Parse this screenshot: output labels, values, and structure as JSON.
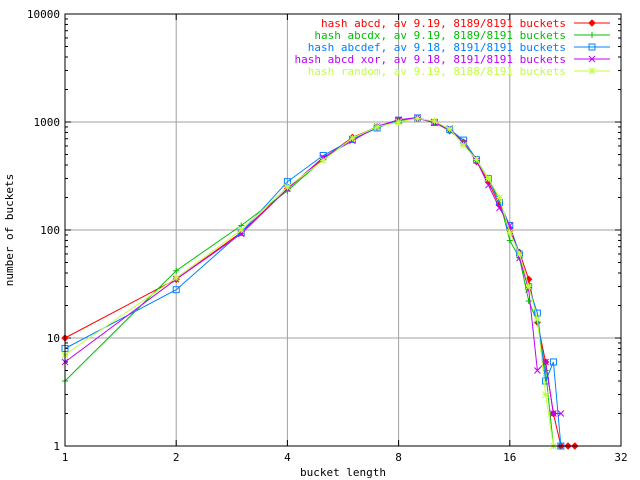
{
  "chart_data": {
    "type": "line",
    "xlabel": "bucket length",
    "ylabel": "number of buckets",
    "x_scale": "log2",
    "y_scale": "log10",
    "xlim": [
      1,
      32
    ],
    "ylim": [
      1,
      10000
    ],
    "x_ticks": [
      "1",
      "2",
      "4",
      "8",
      "16",
      "32"
    ],
    "y_ticks": [
      "1",
      "10",
      "100",
      "1000",
      "10000"
    ],
    "grid": true,
    "legend_position": "top-right",
    "series": [
      {
        "name": "hash abcd, av 9.19, 8189/8191 buckets",
        "color": "#ff0000",
        "marker": "diamond",
        "points": [
          [
            1,
            10
          ],
          [
            2,
            35
          ],
          [
            3,
            95
          ],
          [
            4,
            240
          ],
          [
            5,
            460
          ],
          [
            6,
            720
          ],
          [
            7,
            900
          ],
          [
            8,
            1040
          ],
          [
            9,
            1080
          ],
          [
            10,
            990
          ],
          [
            11,
            830
          ],
          [
            12,
            650
          ],
          [
            13,
            430
          ],
          [
            14,
            280
          ],
          [
            15,
            170
          ],
          [
            16,
            100
          ],
          [
            17,
            62
          ],
          [
            18,
            35
          ],
          [
            19,
            14
          ],
          [
            20,
            6
          ],
          [
            21,
            2
          ],
          [
            22,
            1
          ],
          [
            23,
            1
          ],
          [
            24,
            1
          ]
        ]
      },
      {
        "name": "hash abcdx, av 9.19, 8189/8191 buckets",
        "color": "#00c000",
        "marker": "plus",
        "points": [
          [
            1,
            4
          ],
          [
            2,
            42
          ],
          [
            3,
            110
          ],
          [
            4,
            230
          ],
          [
            5,
            450
          ],
          [
            6,
            700
          ],
          [
            7,
            910
          ],
          [
            8,
            1030
          ],
          [
            9,
            1090
          ],
          [
            10,
            1000
          ],
          [
            11,
            850
          ],
          [
            12,
            650
          ],
          [
            13,
            440
          ],
          [
            14,
            300
          ],
          [
            15,
            190
          ],
          [
            16,
            80
          ],
          [
            17,
            55
          ],
          [
            18,
            22
          ],
          [
            19,
            14
          ],
          [
            20,
            5
          ],
          [
            21,
            1
          ]
        ]
      },
      {
        "name": "hash abcdef, av 9.18, 8191/8191 buckets",
        "color": "#0080ff",
        "marker": "square",
        "points": [
          [
            1,
            8
          ],
          [
            2,
            28
          ],
          [
            3,
            95
          ],
          [
            4,
            280
          ],
          [
            5,
            490
          ],
          [
            6,
            690
          ],
          [
            7,
            880
          ],
          [
            8,
            1040
          ],
          [
            9,
            1090
          ],
          [
            10,
            990
          ],
          [
            11,
            850
          ],
          [
            12,
            680
          ],
          [
            13,
            450
          ],
          [
            14,
            300
          ],
          [
            15,
            180
          ],
          [
            16,
            110
          ],
          [
            17,
            60
          ],
          [
            18,
            30
          ],
          [
            19,
            17
          ],
          [
            20,
            4
          ],
          [
            21,
            6
          ],
          [
            22,
            1
          ]
        ]
      },
      {
        "name": "hash abcd xor, av 9.18, 8191/8191 buckets",
        "color": "#c000ff",
        "marker": "cross",
        "points": [
          [
            1,
            6
          ],
          [
            2,
            35
          ],
          [
            3,
            92
          ],
          [
            4,
            240
          ],
          [
            5,
            470
          ],
          [
            6,
            670
          ],
          [
            7,
            910
          ],
          [
            8,
            1050
          ],
          [
            9,
            1100
          ],
          [
            10,
            980
          ],
          [
            11,
            870
          ],
          [
            12,
            640
          ],
          [
            13,
            440
          ],
          [
            14,
            260
          ],
          [
            15,
            160
          ],
          [
            16,
            110
          ],
          [
            17,
            55
          ],
          [
            18,
            28
          ],
          [
            19,
            5
          ],
          [
            20,
            6
          ],
          [
            21,
            2
          ],
          [
            22,
            2
          ]
        ]
      },
      {
        "name": "hash random, av 9.19, 8188/8191 buckets",
        "color": "#c0ff40",
        "marker": "star",
        "points": [
          [
            1,
            7
          ],
          [
            2,
            36
          ],
          [
            3,
            100
          ],
          [
            4,
            250
          ],
          [
            5,
            440
          ],
          [
            6,
            710
          ],
          [
            7,
            900
          ],
          [
            8,
            1000
          ],
          [
            9,
            1080
          ],
          [
            10,
            1020
          ],
          [
            11,
            860
          ],
          [
            12,
            610
          ],
          [
            13,
            450
          ],
          [
            14,
            300
          ],
          [
            15,
            200
          ],
          [
            16,
            95
          ],
          [
            17,
            60
          ],
          [
            18,
            30
          ],
          [
            19,
            15
          ],
          [
            20,
            3
          ],
          [
            21,
            1
          ]
        ]
      }
    ]
  }
}
